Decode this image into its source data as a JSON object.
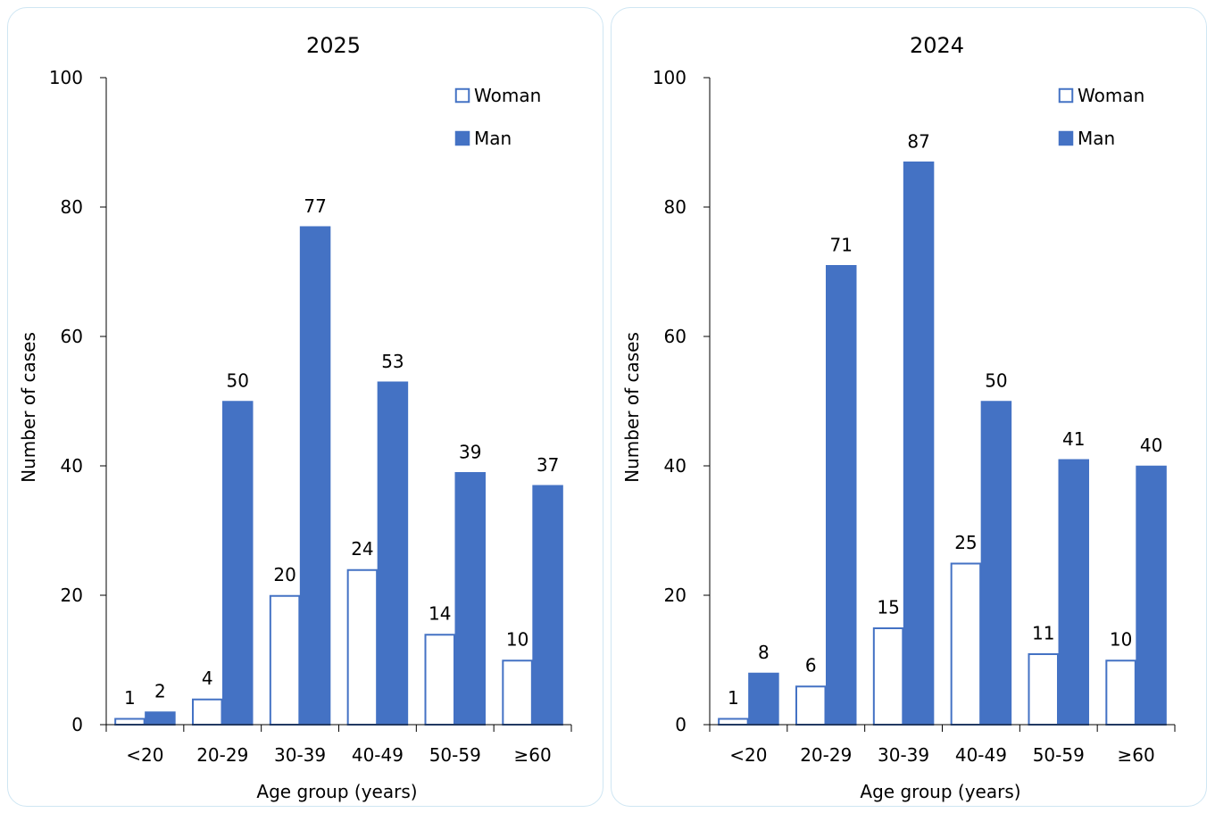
{
  "chart_data": [
    {
      "type": "bar",
      "title": "2025",
      "xlabel": "Age group (years)",
      "ylabel": "Number of cases",
      "ylim": [
        0,
        100
      ],
      "yticks": [
        "0",
        "20",
        "40",
        "60",
        "80",
        "100"
      ],
      "categories": [
        "<20",
        "20-29",
        "30-39",
        "40-49",
        "50-59",
        "≥60"
      ],
      "series": [
        {
          "name": "Woman",
          "values": [
            1,
            4,
            20,
            24,
            14,
            10
          ],
          "fill": "#ffffff",
          "stroke": "#4472c4"
        },
        {
          "name": "Man",
          "values": [
            2,
            50,
            77,
            53,
            39,
            37
          ],
          "fill": "#4472c4",
          "stroke": "#4472c4"
        }
      ],
      "legend": "top-right",
      "grid": false
    },
    {
      "type": "bar",
      "title": "2024",
      "xlabel": "Age group (years)",
      "ylabel": "Number of cases",
      "ylim": [
        0,
        100
      ],
      "yticks": [
        "0",
        "20",
        "40",
        "60",
        "80",
        "100"
      ],
      "categories": [
        "<20",
        "20-29",
        "30-39",
        "40-49",
        "50-59",
        "≥60"
      ],
      "series": [
        {
          "name": "Woman",
          "values": [
            1,
            6,
            15,
            25,
            11,
            10
          ],
          "fill": "#ffffff",
          "stroke": "#4472c4"
        },
        {
          "name": "Man",
          "values": [
            8,
            71,
            87,
            50,
            41,
            40
          ],
          "fill": "#4472c4",
          "stroke": "#4472c4"
        }
      ],
      "legend": "top-right",
      "grid": false
    }
  ]
}
